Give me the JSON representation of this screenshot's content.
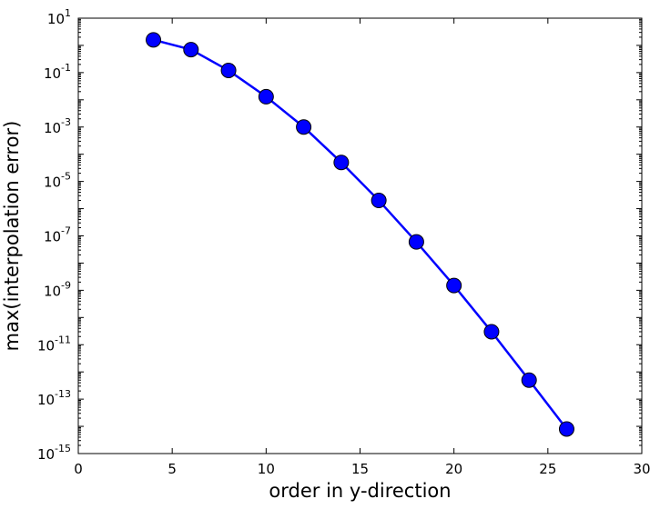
{
  "chart_data": {
    "type": "line",
    "title": "",
    "xlabel": "order in y-direction",
    "ylabel": "max(interpolation error)",
    "xlim": [
      0,
      30
    ],
    "ylim": [
      1e-15,
      10
    ],
    "yscale": "log",
    "grid": false,
    "legend": "none",
    "x_ticks": [
      0,
      5,
      10,
      15,
      20,
      25,
      30
    ],
    "y_ticks": [
      {
        "base": "10",
        "exp": "1",
        "value": 10
      },
      {
        "base": "10",
        "exp": "-1",
        "value": 0.1
      },
      {
        "base": "10",
        "exp": "-3",
        "value": 0.001
      },
      {
        "base": "10",
        "exp": "-5",
        "value": 1e-05
      },
      {
        "base": "10",
        "exp": "-7",
        "value": 1e-07
      },
      {
        "base": "10",
        "exp": "-9",
        "value": 1e-09
      },
      {
        "base": "10",
        "exp": "-11",
        "value": 1e-11
      },
      {
        "base": "10",
        "exp": "-13",
        "value": 1e-13
      },
      {
        "base": "10",
        "exp": "-15",
        "value": 1e-15
      }
    ],
    "series": [
      {
        "x": [
          4,
          6,
          8,
          10,
          12,
          14,
          16,
          18,
          20,
          22,
          24,
          26
        ],
        "y": [
          1.6,
          0.7,
          0.12,
          0.013,
          0.001,
          5e-05,
          2e-06,
          6e-08,
          1.5e-09,
          3e-11,
          5e-13,
          8e-15
        ],
        "color": "#0000ff",
        "marker": "circle"
      }
    ]
  }
}
